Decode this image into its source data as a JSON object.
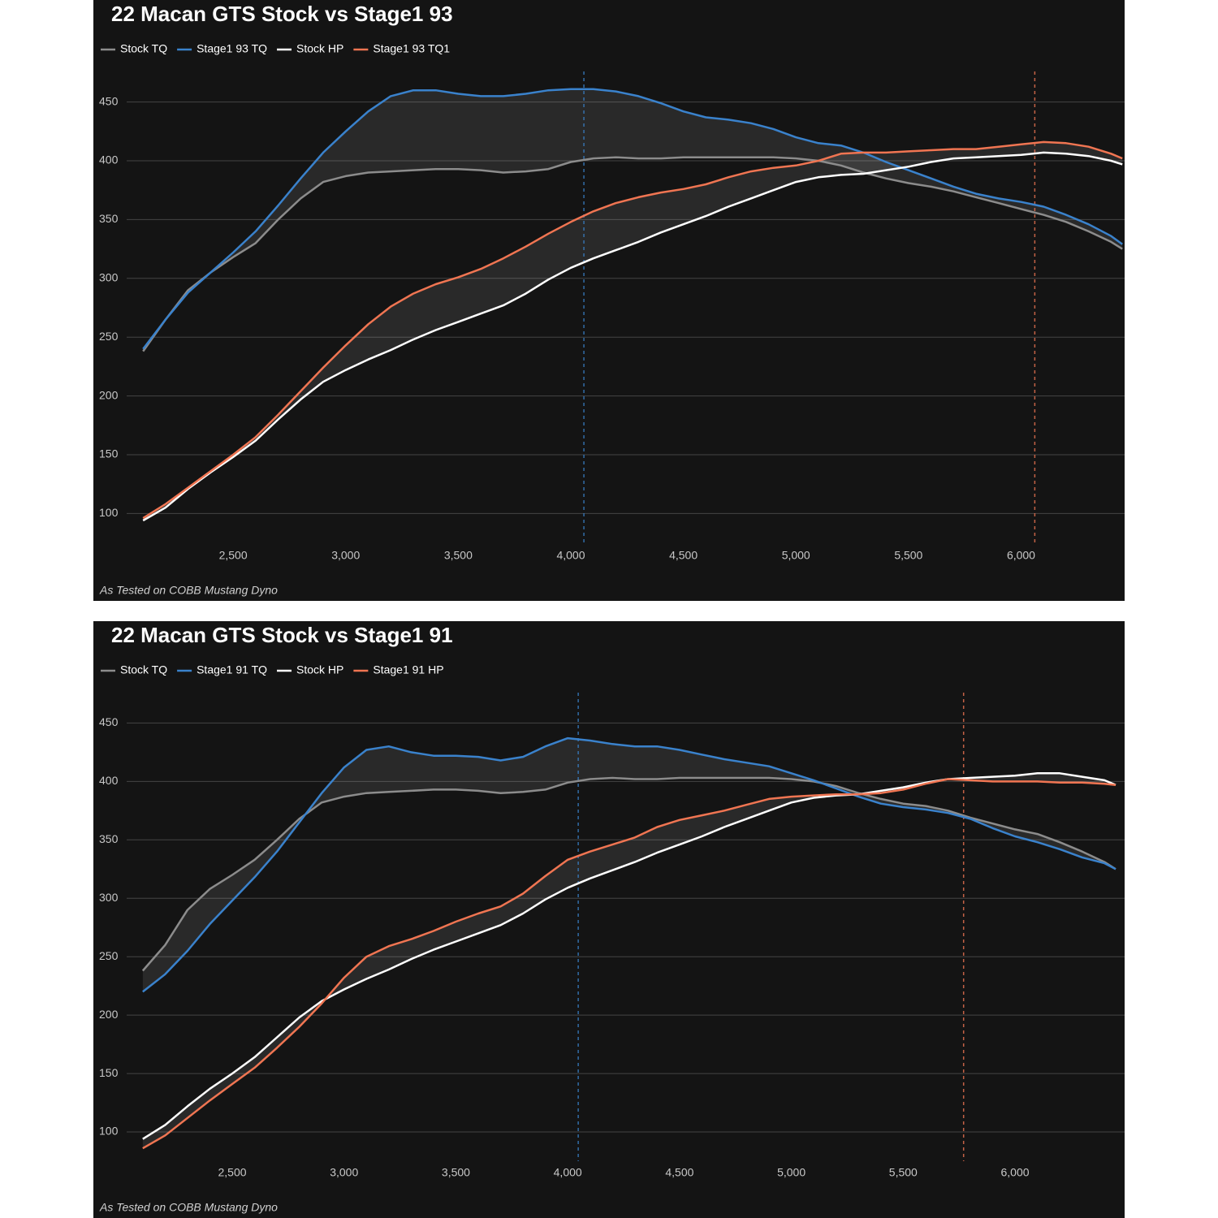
{
  "chart_data": [
    {
      "type": "line",
      "title": "22 Macan GTS Stock vs Stage1 93",
      "footnote": "As Tested on COBB Mustang Dyno",
      "x": [
        2100,
        2200,
        2300,
        2400,
        2500,
        2600,
        2700,
        2800,
        2900,
        3000,
        3100,
        3200,
        3300,
        3400,
        3500,
        3600,
        3700,
        3800,
        3900,
        4000,
        4100,
        4200,
        4300,
        4400,
        4500,
        4600,
        4700,
        4800,
        4900,
        5000,
        5100,
        5200,
        5300,
        5400,
        5500,
        5600,
        5700,
        5800,
        5900,
        6000,
        6100,
        6200,
        6300,
        6400,
        6450
      ],
      "series": [
        {
          "name": "Stock TQ",
          "color": "#8c8c8c",
          "values": [
            238,
            265,
            290,
            305,
            318,
            330,
            350,
            368,
            382,
            387,
            390,
            391,
            392,
            393,
            393,
            392,
            390,
            391,
            393,
            399,
            402,
            403,
            402,
            402,
            403,
            403,
            403,
            403,
            403,
            402,
            400,
            396,
            390,
            385,
            381,
            378,
            374,
            369,
            364,
            359,
            354,
            348,
            340,
            331,
            325
          ]
        },
        {
          "name": "Stage1 93 TQ",
          "color": "#3a82cc",
          "values": [
            240,
            265,
            288,
            305,
            322,
            340,
            362,
            385,
            407,
            425,
            442,
            455,
            460,
            460,
            457,
            455,
            455,
            457,
            460,
            461,
            461,
            459,
            455,
            449,
            442,
            437,
            435,
            432,
            427,
            420,
            415,
            413,
            407,
            399,
            392,
            385,
            378,
            372,
            368,
            365,
            361,
            354,
            346,
            336,
            329
          ]
        },
        {
          "name": "Stock HP",
          "color": "#ffffff",
          "values": [
            94,
            105,
            121,
            135,
            148,
            162,
            180,
            197,
            212,
            222,
            231,
            239,
            248,
            256,
            263,
            270,
            277,
            287,
            299,
            309,
            317,
            324,
            331,
            339,
            346,
            353,
            361,
            368,
            375,
            382,
            386,
            388,
            389,
            392,
            395,
            399,
            402,
            403,
            404,
            405,
            407,
            406,
            404,
            400,
            397
          ]
        },
        {
          "name": "Stage1 93 TQ1",
          "color": "#f07552",
          "values": [
            96,
            108,
            122,
            136,
            150,
            165,
            184,
            204,
            224,
            243,
            261,
            276,
            287,
            295,
            301,
            308,
            317,
            327,
            338,
            348,
            357,
            364,
            369,
            373,
            376,
            380,
            386,
            391,
            394,
            396,
            400,
            406,
            407,
            407,
            408,
            409,
            410,
            410,
            412,
            414,
            416,
            415,
            412,
            406,
            402
          ]
        }
      ],
      "markers": [
        {
          "x": 4058,
          "color": "#3a82cc"
        },
        {
          "x": 6061,
          "color": "#f07552"
        }
      ],
      "xlim": [
        1890,
        6460
      ],
      "ylim": [
        74,
        476
      ],
      "xticks": [
        {
          "value": 2500,
          "label": "2,500"
        },
        {
          "value": 3000,
          "label": "3,000"
        },
        {
          "value": 3500,
          "label": "3,500"
        },
        {
          "value": 4000,
          "label": "4,000"
        },
        {
          "value": 4500,
          "label": "4,500"
        },
        {
          "value": 5000,
          "label": "5,000"
        },
        {
          "value": 5500,
          "label": "5,500"
        },
        {
          "value": 6000,
          "label": "6,000"
        }
      ],
      "yticks": [
        100,
        150,
        200,
        250,
        300,
        350,
        400,
        450
      ],
      "grid": true
    },
    {
      "type": "line",
      "title": "22 Macan GTS Stock vs Stage1 91",
      "footnote": "As Tested on COBB Mustang Dyno",
      "x": [
        2100,
        2200,
        2300,
        2400,
        2500,
        2600,
        2700,
        2800,
        2900,
        3000,
        3100,
        3200,
        3300,
        3400,
        3500,
        3600,
        3700,
        3800,
        3900,
        4000,
        4100,
        4200,
        4300,
        4400,
        4500,
        4600,
        4700,
        4800,
        4900,
        5000,
        5100,
        5200,
        5300,
        5400,
        5500,
        5600,
        5700,
        5800,
        5900,
        6000,
        6100,
        6200,
        6300,
        6400,
        6450
      ],
      "series": [
        {
          "name": "Stock TQ",
          "color": "#8c8c8c",
          "values": [
            238,
            260,
            290,
            308,
            320,
            333,
            350,
            368,
            382,
            387,
            390,
            391,
            392,
            393,
            393,
            392,
            390,
            391,
            393,
            399,
            402,
            403,
            402,
            402,
            403,
            403,
            403,
            403,
            403,
            402,
            400,
            396,
            390,
            385,
            381,
            379,
            375,
            369,
            364,
            359,
            355,
            348,
            340,
            331,
            325
          ]
        },
        {
          "name": "Stage1 91 TQ",
          "color": "#3a82cc",
          "values": [
            220,
            235,
            255,
            278,
            298,
            318,
            340,
            365,
            390,
            412,
            427,
            430,
            425,
            422,
            422,
            421,
            418,
            421,
            430,
            437,
            435,
            432,
            430,
            430,
            427,
            423,
            419,
            416,
            413,
            407,
            401,
            394,
            387,
            381,
            378,
            376,
            373,
            368,
            360,
            353,
            348,
            342,
            335,
            330,
            325
          ]
        },
        {
          "name": "Stock HP",
          "color": "#ffffff",
          "values": [
            94,
            106,
            122,
            137,
            150,
            164,
            181,
            198,
            212,
            222,
            231,
            239,
            248,
            256,
            263,
            270,
            277,
            287,
            299,
            309,
            317,
            324,
            331,
            339,
            346,
            353,
            361,
            368,
            375,
            382,
            386,
            388,
            389,
            392,
            395,
            399,
            402,
            403,
            404,
            405,
            407,
            407,
            404,
            401,
            397
          ]
        },
        {
          "name": "Stage1 91 HP",
          "color": "#f07552",
          "values": [
            86,
            97,
            112,
            127,
            141,
            155,
            172,
            190,
            210,
            232,
            250,
            259,
            265,
            272,
            280,
            287,
            293,
            304,
            319,
            333,
            340,
            346,
            352,
            361,
            367,
            371,
            375,
            380,
            385,
            387,
            388,
            389,
            389,
            390,
            393,
            398,
            402,
            401,
            400,
            400,
            400,
            399,
            399,
            398,
            397
          ]
        }
      ],
      "markers": [
        {
          "x": 4047,
          "color": "#3a82cc"
        },
        {
          "x": 5770,
          "color": "#f07552"
        }
      ],
      "xlim": [
        1890,
        6490
      ],
      "ylim": [
        75,
        476
      ],
      "xticks": [
        {
          "value": 2500,
          "label": "2,500"
        },
        {
          "value": 3000,
          "label": "3,000"
        },
        {
          "value": 3500,
          "label": "3,500"
        },
        {
          "value": 4000,
          "label": "4,000"
        },
        {
          "value": 4500,
          "label": "4,500"
        },
        {
          "value": 5000,
          "label": "5,000"
        },
        {
          "value": 5500,
          "label": "5,500"
        },
        {
          "value": 6000,
          "label": "6,000"
        }
      ],
      "yticks": [
        100,
        150,
        200,
        250,
        300,
        350,
        400,
        450
      ],
      "grid": true
    }
  ]
}
